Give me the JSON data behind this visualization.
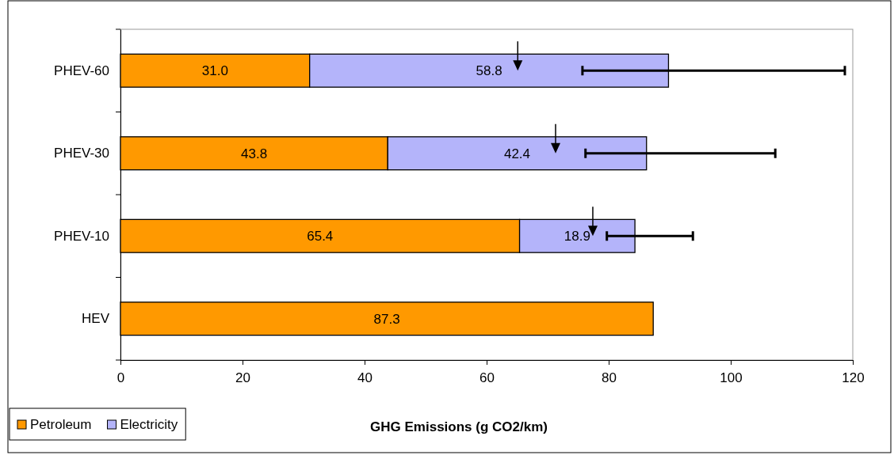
{
  "chart_data": {
    "type": "bar",
    "orientation": "horizontal",
    "stacked": true,
    "xlabel": "GHG Emissions (g CO2/km)",
    "categories": [
      "PHEV-60",
      "PHEV-30",
      "PHEV-10",
      "HEV"
    ],
    "series": [
      {
        "name": "Petroleum",
        "color": "#ff9900",
        "values": [
          31.0,
          43.8,
          65.4,
          87.3
        ],
        "value_labels": [
          "31.0",
          "43.8",
          "65.4",
          "87.3"
        ]
      },
      {
        "name": "Electricity",
        "color": "#b4b4fa",
        "values": [
          58.8,
          42.4,
          18.9,
          null
        ],
        "value_labels": [
          "58.8",
          "42.4",
          "18.9",
          null
        ],
        "errors": [
          [
            75.7,
            118.7
          ],
          [
            76.2,
            107.3
          ],
          [
            79.7,
            93.8
          ],
          null
        ]
      },
      {
        "type": "scatter",
        "marker": "triangle",
        "color": "#000000",
        "values": [
          65.1,
          71.3,
          77.4,
          null
        ]
      }
    ],
    "xlim": [
      0,
      120
    ],
    "xticks": [
      0,
      20,
      40,
      60,
      80,
      100,
      120
    ],
    "grid": false,
    "legend": "bottom left"
  }
}
